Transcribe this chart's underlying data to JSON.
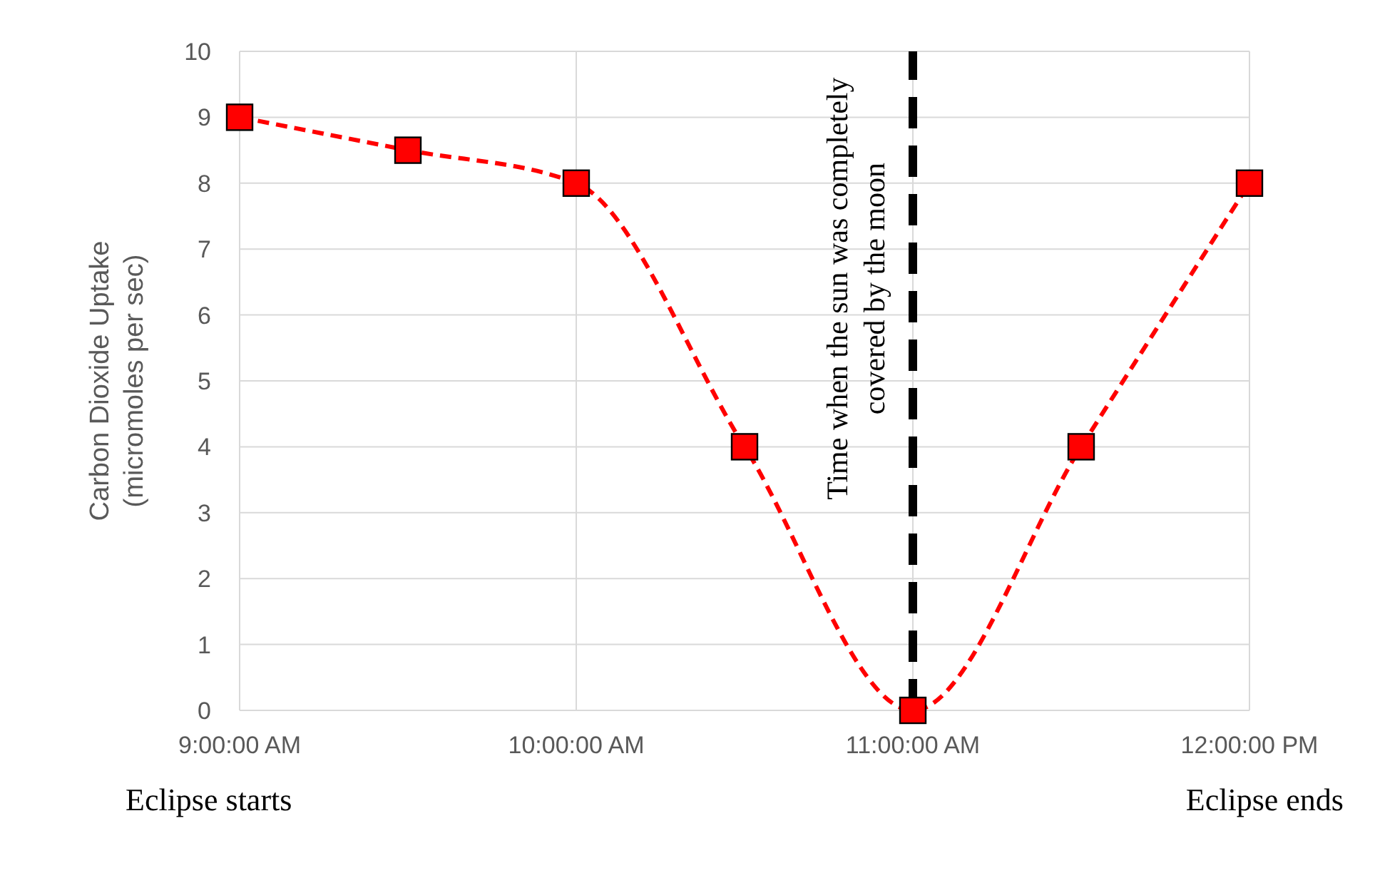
{
  "chart_data": {
    "type": "line",
    "ylabel": "Carbon Dioxide Uptake (micromoles per sec)",
    "x": [
      9,
      9.5,
      10,
      10.5,
      11,
      11.5,
      12
    ],
    "series": [
      {
        "color": "#ff0000",
        "values": [
          9,
          8.5,
          8,
          4,
          0,
          4,
          8
        ]
      }
    ],
    "xlim": [
      9,
      12
    ],
    "xticks": [
      {
        "value": 9,
        "label": "9:00:00 AM"
      },
      {
        "value": 10,
        "label": "10:00:00 AM"
      },
      {
        "value": 11,
        "label": "11:00:00 AM"
      },
      {
        "value": 12,
        "label": "12:00:00 PM"
      }
    ],
    "ylim": [
      0,
      10
    ],
    "yticks": [
      0,
      1,
      2,
      3,
      4,
      5,
      6,
      7,
      8,
      9,
      10
    ],
    "grid": true,
    "marker": "square",
    "line_style": "dashed",
    "legend": false,
    "ref_lines": [
      {
        "axis": "x",
        "value": 11,
        "label": "Time when the sun was completely covered by the moon",
        "color": "#000000",
        "line_style": "dashed"
      }
    ],
    "annotations": [
      "Eclipse starts",
      "Eclipse ends"
    ]
  }
}
